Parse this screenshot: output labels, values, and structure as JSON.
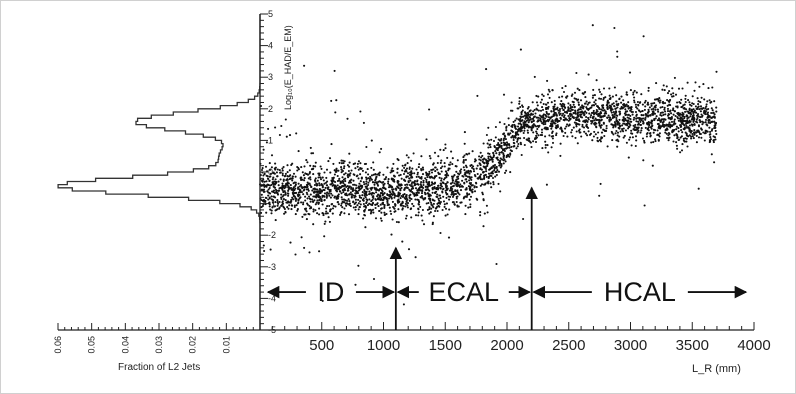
{
  "chart_data": [
    {
      "type": "scatter",
      "xlabel": "L_R (mm)",
      "ylabel": "Log₁₀(E_HAD/E_EM)",
      "xlim": [
        0,
        4000
      ],
      "ylim": [
        -5,
        5
      ],
      "xticks": [
        "500",
        "1000",
        "1500",
        "2000",
        "2500",
        "3000",
        "3500",
        "4000"
      ],
      "yticks": [
        "-5",
        "-4",
        "-3",
        "-2",
        "-1",
        "0",
        "1",
        "2",
        "3",
        "4",
        "5"
      ],
      "x_range": [
        0,
        3700
      ],
      "profile": [
        {
          "x": 0,
          "y": -0.6
        },
        {
          "x": 500,
          "y": -0.55
        },
        {
          "x": 1000,
          "y": -0.6
        },
        {
          "x": 1500,
          "y": -0.5
        },
        {
          "x": 1800,
          "y": -0.1
        },
        {
          "x": 1950,
          "y": 0.6
        },
        {
          "x": 2100,
          "y": 1.5
        },
        {
          "x": 2500,
          "y": 1.8
        },
        {
          "x": 3000,
          "y": 1.75
        },
        {
          "x": 3700,
          "y": 1.6
        }
      ],
      "regions": [
        {
          "label": "ID",
          "x_start": 0,
          "x_end": 1100
        },
        {
          "label": "ECAL",
          "x_start": 1100,
          "x_end": 2200
        },
        {
          "label": "HCAL",
          "x_start": 2200,
          "x_end": 4000
        }
      ],
      "boundaries": [
        1100,
        2200
      ],
      "region_label_y": -3.8
    },
    {
      "type": "area",
      "xlabel": "Fraction of L2 Jets",
      "x_axis_reversed": true,
      "xlim": [
        0,
        0.06
      ],
      "xticks": [
        "0.01",
        "0.02",
        "0.03",
        "0.04",
        "0.05",
        "0.06"
      ],
      "ylim": [
        -5,
        5
      ],
      "bin_width": 0.1,
      "series": [
        {
          "peaks": [
            {
              "center": -0.45,
              "height": 0.058,
              "width": 0.28
            },
            {
              "center": 1.6,
              "height": 0.036,
              "width": 0.3
            },
            {
              "center": 0.5,
              "height": 0.012,
              "width": 0.5
            }
          ]
        }
      ]
    }
  ]
}
